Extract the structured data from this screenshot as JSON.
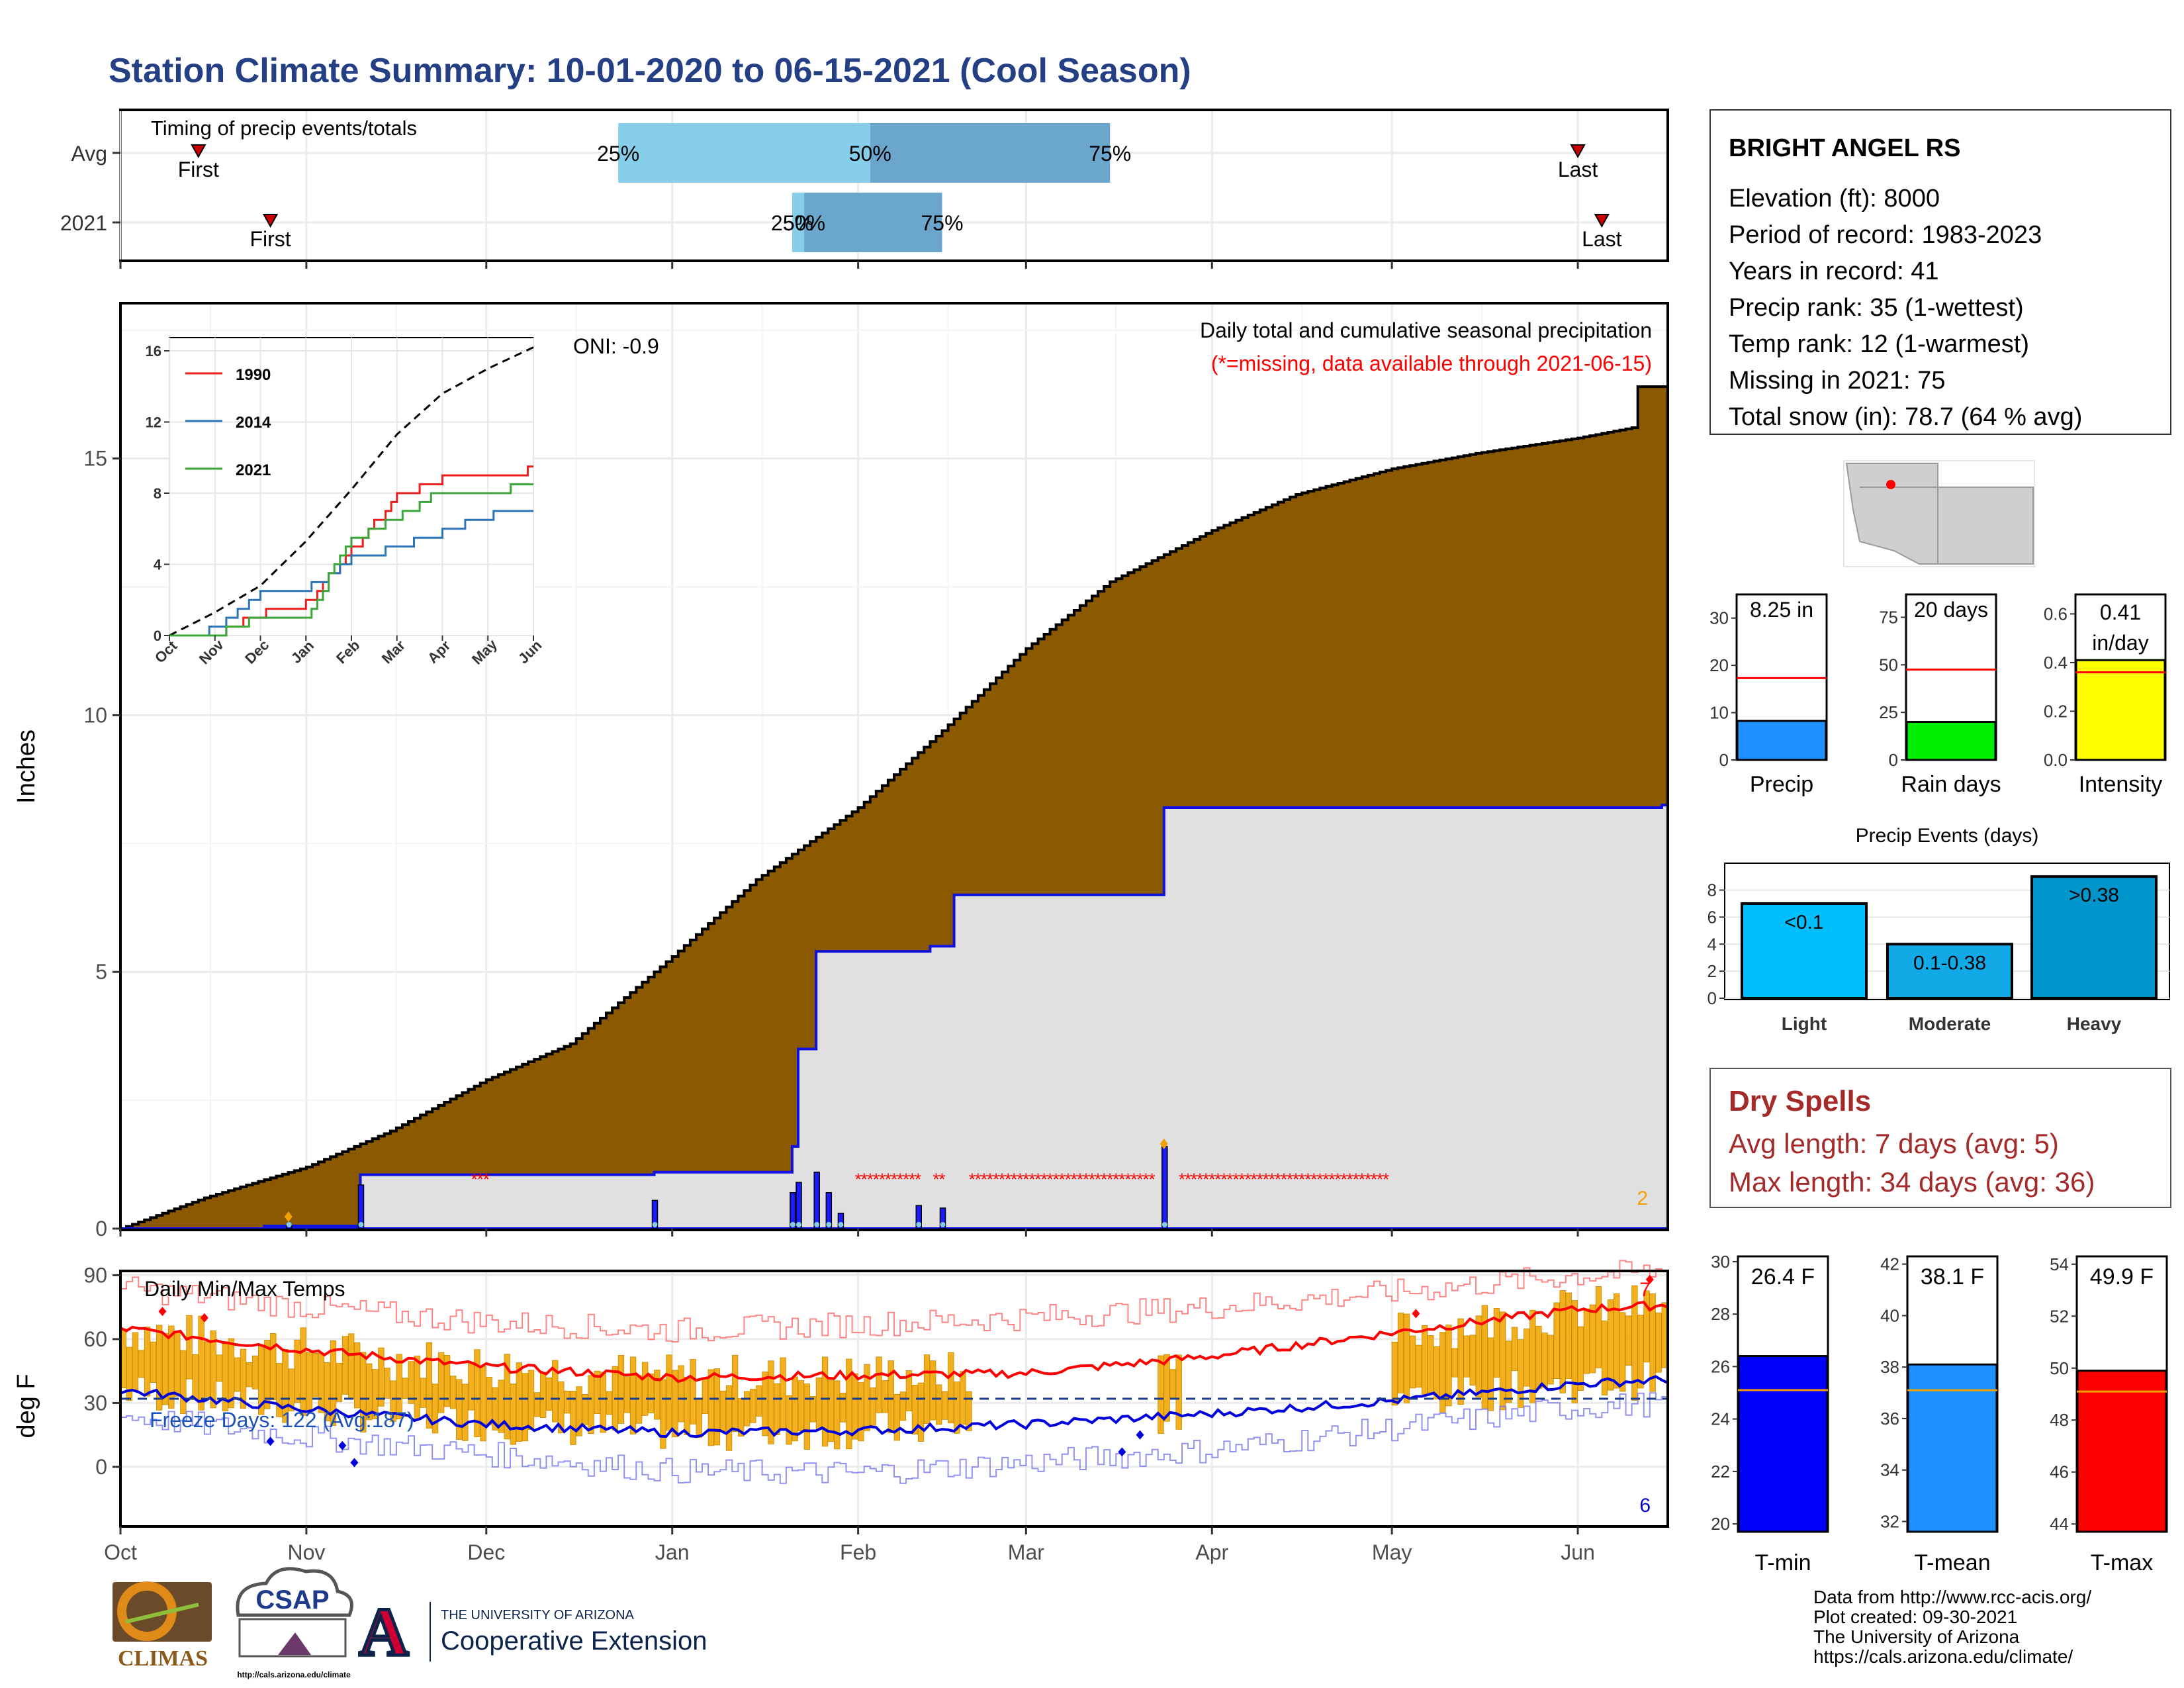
{
  "title": "Station Climate Summary: 10-01-2020 to 06-15-2021 (Cool Season)",
  "colors": {
    "title": "#253f85",
    "precip_fill": "#8b5a00",
    "daily_blue": "#1a1aff",
    "missing": "#ff0000",
    "q25": "#87ceeb",
    "q50": "#6ba6cd",
    "temp_bar": "#f2b01e",
    "dry_spell": "#a52a2a",
    "avg_line": "#ff0000"
  },
  "timing_panel": {
    "title": "Timing of precip events/totals",
    "rows": [
      "Avg",
      "2021"
    ],
    "first_label": "First",
    "last_label": "Last",
    "labels": {
      "p25": "25%",
      "p50": "50%",
      "p75": "75%"
    },
    "avg": {
      "first": "2020-10-14",
      "p25": "2020-12-23",
      "p50": "2021-02-03",
      "p75": "2021-03-15",
      "last": "2021-06-01"
    },
    "yr": {
      "first": "2020-10-26",
      "p25": "2021-01-21",
      "p50": "2021-01-23",
      "p75": "2021-02-15",
      "last": "2021-06-05"
    }
  },
  "precip_panel": {
    "ylabel": "Inches",
    "right_title": "Daily total and cumulative seasonal precipitation",
    "right_note": "(*=missing, data available through 2021-06-15)",
    "oni": "ONI: -0.9",
    "corner_count": "2",
    "yticks": [
      0,
      5,
      10,
      15
    ]
  },
  "inset": {
    "yticks": [
      0,
      4,
      8,
      12,
      16
    ],
    "xticks": [
      "Oct",
      "Nov",
      "Dec",
      "Jan",
      "Feb",
      "Mar",
      "Apr",
      "May",
      "Jun"
    ],
    "legend": [
      {
        "name": "1990",
        "color": "#ee1c1c"
      },
      {
        "name": "2014",
        "color": "#2b74b8"
      },
      {
        "name": "2021",
        "color": "#3aa63a"
      }
    ]
  },
  "temp_panel": {
    "title": "Daily Min/Max Temps",
    "ylabel": "deg F",
    "freeze_text": "Freeze Days: 122 (Avg:187)",
    "count_high": "7",
    "count_low": "6",
    "yticks": [
      0,
      30,
      60,
      90
    ]
  },
  "x_axis": {
    "ticks": [
      "Oct",
      "Nov",
      "Dec",
      "Jan",
      "Feb",
      "Mar",
      "Apr",
      "May",
      "Jun"
    ]
  },
  "station": {
    "name": "BRIGHT ANGEL RS",
    "lines": [
      "Elevation (ft): 8000",
      "Period of record: 1983-2023",
      "Years in record: 41",
      "Precip rank: 35 (1-wettest)",
      "Temp rank: 12 (1-warmest)",
      "Missing in 2021: 75",
      "Total snow (in): 78.7 (64 % avg)"
    ]
  },
  "summary_bars": [
    {
      "label": "Precip",
      "value_text": "8.25 in",
      "value": 8.25,
      "avg": 17.3,
      "ymax": 35,
      "yticks": [
        0,
        10,
        20,
        30
      ],
      "color": "#1e90ff"
    },
    {
      "label": "Rain days",
      "value_text": "20 days",
      "value": 20,
      "avg": 47.5,
      "ymax": 87,
      "yticks": [
        0,
        25,
        50,
        75
      ],
      "color": "#00ee00"
    },
    {
      "label": "Intensity",
      "value_text": "0.41 in/day",
      "value": 0.41,
      "avg": 0.36,
      "ymax": 0.68,
      "yticks": [
        "0.0",
        "0.2",
        "0.4",
        "0.6"
      ],
      "color": "#ffff00"
    }
  ],
  "precip_events": {
    "title": "Precip Events (days)",
    "yticks": [
      0,
      2,
      4,
      6,
      8
    ],
    "bars": [
      {
        "category": "Light",
        "label": "<0.1",
        "value": 7,
        "color": "#00bfff"
      },
      {
        "category": "Moderate",
        "label": "0.1-0.38",
        "value": 4,
        "color": "#11a9e6"
      },
      {
        "category": "Heavy",
        "label": ">0.38",
        "value": 9,
        "color": "#0096cc"
      }
    ]
  },
  "dry_spells": {
    "title": "Dry Spells",
    "avg": "Avg length: 7 days (avg: 5)",
    "max": "Max length: 34 days (avg: 36)"
  },
  "temp_bars": [
    {
      "label": "T-min",
      "value_text": "26.4 F",
      "value": 26.4,
      "avg": 25.1,
      "ymin": 19.7,
      "ymax": 30.2,
      "yticks": [
        20,
        22,
        24,
        26,
        28,
        30
      ],
      "color": "#0000ff"
    },
    {
      "label": "T-mean",
      "value_text": "38.1 F",
      "value": 38.1,
      "avg": 37.1,
      "ymin": 31.6,
      "ymax": 42.3,
      "yticks": [
        32,
        34,
        36,
        38,
        40,
        42
      ],
      "color": "#1e90ff"
    },
    {
      "label": "T-max",
      "value_text": "49.9 F",
      "value": 49.9,
      "avg": 49.1,
      "ymin": 43.7,
      "ymax": 54.3,
      "yticks": [
        44,
        46,
        48,
        50,
        52,
        54
      ],
      "color": "#ff0000"
    }
  ],
  "footer": {
    "lines": [
      "Data from http://www.rcc-acis.org/",
      "Plot created: 09-30-2021",
      "The University of Arizona",
      "https://cals.arizona.edu/climate/"
    ],
    "logos": {
      "climas": "CLIMAS",
      "csap": "CSAP",
      "csap_url": "http://cals.arizona.edu/climate",
      "ua_small": "THE UNIVERSITY OF ARIZONA",
      "ua_big": "Cooperative Extension",
      "ua_letter": "A"
    }
  },
  "chart_data": [
    {
      "type": "area",
      "title": "Daily total and cumulative seasonal precipitation",
      "ylabel": "Inches",
      "ylim": [
        0,
        18
      ],
      "series": [
        {
          "name": "",
          "x": [
            "2020-10-01",
            "2020-10-15",
            "2020-11-01",
            "2020-11-15",
            "2020-12-01",
            "2020-12-15",
            "2021-01-01",
            "2021-01-15",
            "2021-02-01",
            "2021-02-15",
            "2021-03-01",
            "2021-03-15",
            "2021-04-01",
            "2021-04-15",
            "2021-05-01",
            "2021-05-15",
            "2021-06-01",
            "2021-06-10",
            "2021-06-15"
          ],
          "values": [
            0.0,
            0.6,
            1.2,
            1.9,
            2.9,
            3.6,
            5.3,
            6.8,
            8.2,
            9.7,
            11.3,
            12.6,
            13.6,
            14.3,
            14.8,
            15.1,
            15.4,
            15.6,
            16.4
          ]
        },
        {
          "name": "",
          "x": [
            "2020-10-01",
            "2020-10-25",
            "2020-11-10",
            "2020-12-29",
            "2021-01-21",
            "2021-01-22",
            "2021-01-25",
            "2021-02-13",
            "2021-02-17",
            "2021-03-24",
            "2021-06-15"
          ],
          "values": [
            0.0,
            0.05,
            1.05,
            1.1,
            1.6,
            3.5,
            5.4,
            5.5,
            6.5,
            8.2,
            8.25
          ]
        }
      ],
      "daily_precip_events": [
        {
          "date": "2020-10-29",
          "value": 0.05
        },
        {
          "date": "2020-11-10",
          "value": 0.85
        },
        {
          "date": "2020-12-29",
          "value": 0.55
        },
        {
          "date": "2021-01-21",
          "value": 0.7
        },
        {
          "date": "2021-01-22",
          "value": 0.9
        },
        {
          "date": "2021-01-25",
          "value": 1.1
        },
        {
          "date": "2021-01-27",
          "value": 0.7
        },
        {
          "date": "2021-01-29",
          "value": 0.3
        },
        {
          "date": "2021-02-11",
          "value": 0.45
        },
        {
          "date": "2021-02-15",
          "value": 0.4
        },
        {
          "date": "2021-03-24",
          "value": 1.6
        }
      ],
      "missing_ranges": [
        [
          "2020-11-29",
          "2020-12-01"
        ],
        [
          "2021-02-01",
          "2021-02-11"
        ],
        [
          "2021-02-14",
          "2021-02-15"
        ],
        [
          "2021-02-20",
          "2021-03-22"
        ],
        [
          "2021-03-27",
          "2021-04-30"
        ]
      ]
    },
    {
      "type": "line",
      "title": "",
      "ylim": [
        0,
        16
      ],
      "xlabel": "",
      "categories": [
        "Oct",
        "Nov",
        "Dec",
        "Jan",
        "Feb",
        "Mar",
        "Apr",
        "May",
        "Jun"
      ],
      "series": [
        {
          "name": "",
          "values": [
            0,
            1.3,
            2.8,
            5.3,
            8.2,
            11.3,
            13.6,
            15.0,
            16.2
          ]
        },
        {
          "name": "1990",
          "values": [
            0,
            0,
            1.2,
            1.8,
            4.8,
            7.8,
            8.8,
            8.9,
            9.3
          ]
        },
        {
          "name": "2014",
          "values": [
            0,
            0.3,
            2.4,
            2.6,
            4.3,
            5.0,
            5.8,
            6.7,
            7.2
          ]
        },
        {
          "name": "2021",
          "values": [
            0,
            0,
            1.1,
            1.1,
            5.4,
            6.6,
            8.2,
            8.2,
            8.3
          ]
        }
      ]
    },
    {
      "type": "line",
      "title": "Daily Min/Max Temps",
      "ylabel": "deg F",
      "ylim": [
        -28,
        92
      ],
      "categories": [
        "Oct",
        "Nov",
        "Dec",
        "Jan",
        "Feb",
        "Mar",
        "Apr",
        "May",
        "Jun"
      ],
      "series": [
        {
          "name": "",
          "values": [
            65,
            55,
            47,
            42,
            43,
            44,
            52,
            63,
            74
          ]
        },
        {
          "name": "",
          "values": [
            36,
            27,
            20,
            16,
            17,
            20,
            25,
            31,
            39
          ]
        },
        {
          "name": "",
          "values": [
            84,
            75,
            68,
            64,
            67,
            70,
            75,
            82,
            90
          ]
        },
        {
          "name": "",
          "values": [
            24,
            14,
            6,
            -2,
            -3,
            2,
            8,
            18,
            28
          ]
        },
        {
          "name": "",
          "values": [
            32,
            32,
            32,
            32,
            32,
            32,
            32,
            32,
            32
          ]
        }
      ]
    }
  ]
}
